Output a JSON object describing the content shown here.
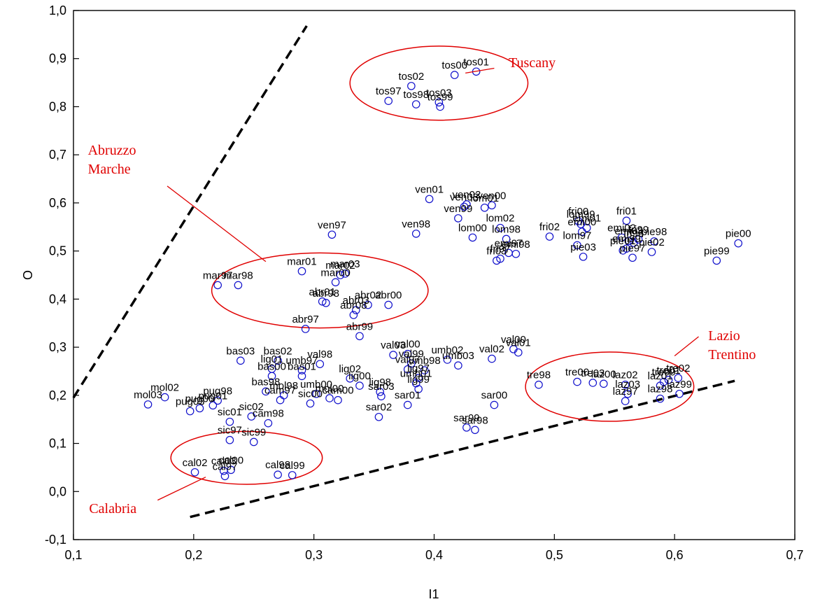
{
  "chart_data": {
    "type": "scatter",
    "title": "",
    "xlabel": "I1",
    "ylabel": "O",
    "xlim": [
      0.1,
      0.7
    ],
    "ylim": [
      -0.1,
      1.0
    ],
    "x_ticks": [
      "0,1",
      "0,2",
      "0,3",
      "0,4",
      "0,5",
      "0,6",
      "0,7"
    ],
    "y_ticks": [
      "-0,1",
      "0,0",
      "0,1",
      "0,2",
      "0,3",
      "0,4",
      "0,5",
      "0,6",
      "0,7",
      "0,8",
      "0,9",
      "1,0"
    ],
    "grid": false,
    "marker_color": "#1010cc",
    "annotation_color": "#e00000",
    "points": [
      {
        "label": "tos01",
        "x": 0.435,
        "y": 0.873
      },
      {
        "label": "tos00",
        "x": 0.417,
        "y": 0.866
      },
      {
        "label": "tos02",
        "x": 0.381,
        "y": 0.843
      },
      {
        "label": "tos97",
        "x": 0.362,
        "y": 0.812
      },
      {
        "label": "tos98",
        "x": 0.385,
        "y": 0.805
      },
      {
        "label": "tos03",
        "x": 0.404,
        "y": 0.809
      },
      {
        "label": "tos99",
        "x": 0.405,
        "y": 0.8
      },
      {
        "label": "ven01",
        "x": 0.396,
        "y": 0.608
      },
      {
        "label": "ven02",
        "x": 0.427,
        "y": 0.597
      },
      {
        "label": "ven00",
        "x": 0.448,
        "y": 0.595
      },
      {
        "label": "ven03",
        "x": 0.425,
        "y": 0.592
      },
      {
        "label": "lom01",
        "x": 0.442,
        "y": 0.59
      },
      {
        "label": "ven99",
        "x": 0.42,
        "y": 0.568
      },
      {
        "label": "ven97",
        "x": 0.315,
        "y": 0.534
      },
      {
        "label": "ven98",
        "x": 0.385,
        "y": 0.536
      },
      {
        "label": "lom00",
        "x": 0.432,
        "y": 0.528
      },
      {
        "label": "lom02",
        "x": 0.455,
        "y": 0.548
      },
      {
        "label": "lom98",
        "x": 0.46,
        "y": 0.525
      },
      {
        "label": "emi97",
        "x": 0.462,
        "y": 0.496
      },
      {
        "label": "emi98",
        "x": 0.468,
        "y": 0.494
      },
      {
        "label": "fri03",
        "x": 0.452,
        "y": 0.48
      },
      {
        "label": "fri97",
        "x": 0.455,
        "y": 0.484
      },
      {
        "label": "fri02",
        "x": 0.496,
        "y": 0.53
      },
      {
        "label": "fri00",
        "x": 0.52,
        "y": 0.562
      },
      {
        "label": "lom99",
        "x": 0.522,
        "y": 0.556
      },
      {
        "label": "emi00",
        "x": 0.523,
        "y": 0.54
      },
      {
        "label": "emi01",
        "x": 0.527,
        "y": 0.548
      },
      {
        "label": "lom97",
        "x": 0.519,
        "y": 0.512
      },
      {
        "label": "pie03",
        "x": 0.524,
        "y": 0.488
      },
      {
        "label": "fri01",
        "x": 0.56,
        "y": 0.563
      },
      {
        "label": "emi02",
        "x": 0.556,
        "y": 0.528
      },
      {
        "label": "emi03",
        "x": 0.562,
        "y": 0.521
      },
      {
        "label": "fri98",
        "x": 0.566,
        "y": 0.517
      },
      {
        "label": "fri99",
        "x": 0.57,
        "y": 0.524
      },
      {
        "label": "emi99",
        "x": 0.56,
        "y": 0.505
      },
      {
        "label": "pie01",
        "x": 0.557,
        "y": 0.501
      },
      {
        "label": "pie02",
        "x": 0.581,
        "y": 0.498
      },
      {
        "label": "pie97",
        "x": 0.565,
        "y": 0.486
      },
      {
        "label": "pie98",
        "x": 0.583,
        "y": 0.52
      },
      {
        "label": "pie00",
        "x": 0.653,
        "y": 0.516
      },
      {
        "label": "pie99",
        "x": 0.635,
        "y": 0.48
      },
      {
        "label": "mar01",
        "x": 0.29,
        "y": 0.458
      },
      {
        "label": "mar02",
        "x": 0.322,
        "y": 0.45
      },
      {
        "label": "mar03",
        "x": 0.326,
        "y": 0.453
      },
      {
        "label": "mar00",
        "x": 0.318,
        "y": 0.435
      },
      {
        "label": "mar97",
        "x": 0.22,
        "y": 0.429
      },
      {
        "label": "mar98",
        "x": 0.237,
        "y": 0.429
      },
      {
        "label": "abr01",
        "x": 0.307,
        "y": 0.395
      },
      {
        "label": "abr98",
        "x": 0.31,
        "y": 0.392
      },
      {
        "label": "abr02",
        "x": 0.345,
        "y": 0.388
      },
      {
        "label": "abr00",
        "x": 0.362,
        "y": 0.388
      },
      {
        "label": "abr03",
        "x": 0.335,
        "y": 0.377
      },
      {
        "label": "abr08",
        "x": 0.333,
        "y": 0.367
      },
      {
        "label": "abr97",
        "x": 0.293,
        "y": 0.338
      },
      {
        "label": "abr99",
        "x": 0.338,
        "y": 0.323
      },
      {
        "label": "bas03",
        "x": 0.239,
        "y": 0.272
      },
      {
        "label": "bas02",
        "x": 0.27,
        "y": 0.272
      },
      {
        "label": "val98",
        "x": 0.305,
        "y": 0.265
      },
      {
        "label": "lig01",
        "x": 0.265,
        "y": 0.255
      },
      {
        "label": "umb97",
        "x": 0.29,
        "y": 0.252
      },
      {
        "label": "bas01",
        "x": 0.29,
        "y": 0.24
      },
      {
        "label": "bas00",
        "x": 0.265,
        "y": 0.24
      },
      {
        "label": "lig02",
        "x": 0.33,
        "y": 0.235
      },
      {
        "label": "bas98",
        "x": 0.26,
        "y": 0.208
      },
      {
        "label": "mol98",
        "x": 0.275,
        "y": 0.2
      },
      {
        "label": "lig00",
        "x": 0.338,
        "y": 0.22
      },
      {
        "label": "lig98",
        "x": 0.355,
        "y": 0.207
      },
      {
        "label": "sic00",
        "x": 0.297,
        "y": 0.183
      },
      {
        "label": "cam97",
        "x": 0.272,
        "y": 0.19
      },
      {
        "label": "cam00",
        "x": 0.32,
        "y": 0.19
      },
      {
        "label": "mol00",
        "x": 0.313,
        "y": 0.194
      },
      {
        "label": "umb00",
        "x": 0.302,
        "y": 0.203
      },
      {
        "label": "sic02",
        "x": 0.248,
        "y": 0.156
      },
      {
        "label": "sic01",
        "x": 0.23,
        "y": 0.145
      },
      {
        "label": "sic99",
        "x": 0.25,
        "y": 0.103
      },
      {
        "label": "sic97",
        "x": 0.23,
        "y": 0.107
      },
      {
        "label": "cam98",
        "x": 0.262,
        "y": 0.142
      },
      {
        "label": "mol03",
        "x": 0.162,
        "y": 0.181
      },
      {
        "label": "mol02",
        "x": 0.176,
        "y": 0.196
      },
      {
        "label": "pug03",
        "x": 0.197,
        "y": 0.167
      },
      {
        "label": "pug98",
        "x": 0.22,
        "y": 0.189
      },
      {
        "label": "pug00",
        "x": 0.205,
        "y": 0.173
      },
      {
        "label": "pug01",
        "x": 0.216,
        "y": 0.179
      },
      {
        "label": "cal02",
        "x": 0.201,
        "y": 0.04
      },
      {
        "label": "cal03",
        "x": 0.225,
        "y": 0.043
      },
      {
        "label": "cal00",
        "x": 0.231,
        "y": 0.045
      },
      {
        "label": "cal97",
        "x": 0.226,
        "y": 0.032
      },
      {
        "label": "cal98",
        "x": 0.27,
        "y": 0.035
      },
      {
        "label": "cal99",
        "x": 0.282,
        "y": 0.034
      },
      {
        "label": "val03",
        "x": 0.366,
        "y": 0.284
      },
      {
        "label": "val00",
        "x": 0.378,
        "y": 0.286
      },
      {
        "label": "umb02",
        "x": 0.411,
        "y": 0.274
      },
      {
        "label": "umb03",
        "x": 0.42,
        "y": 0.262
      },
      {
        "label": "val02",
        "x": 0.448,
        "y": 0.276
      },
      {
        "label": "val00b",
        "x": 0.466,
        "y": 0.296
      },
      {
        "label": "val01",
        "x": 0.47,
        "y": 0.289
      },
      {
        "label": "val99",
        "x": 0.381,
        "y": 0.266
      },
      {
        "label": "val97",
        "x": 0.378,
        "y": 0.254
      },
      {
        "label": "umb98",
        "x": 0.392,
        "y": 0.252
      },
      {
        "label": "lig97",
        "x": 0.387,
        "y": 0.236
      },
      {
        "label": "umb01",
        "x": 0.385,
        "y": 0.225
      },
      {
        "label": "lig99",
        "x": 0.387,
        "y": 0.213
      },
      {
        "label": "sar03",
        "x": 0.356,
        "y": 0.198
      },
      {
        "label": "sar01",
        "x": 0.378,
        "y": 0.18
      },
      {
        "label": "sar02",
        "x": 0.354,
        "y": 0.155
      },
      {
        "label": "sar00",
        "x": 0.45,
        "y": 0.18
      },
      {
        "label": "sar99",
        "x": 0.427,
        "y": 0.133
      },
      {
        "label": "sar98",
        "x": 0.434,
        "y": 0.128
      },
      {
        "label": "tre98",
        "x": 0.487,
        "y": 0.222
      },
      {
        "label": "tre00",
        "x": 0.519,
        "y": 0.228
      },
      {
        "label": "tre03",
        "x": 0.532,
        "y": 0.226
      },
      {
        "label": "laz00",
        "x": 0.541,
        "y": 0.224
      },
      {
        "label": "laz02",
        "x": 0.559,
        "y": 0.222
      },
      {
        "label": "laz03",
        "x": 0.561,
        "y": 0.203
      },
      {
        "label": "laz97",
        "x": 0.559,
        "y": 0.188
      },
      {
        "label": "laz98",
        "x": 0.588,
        "y": 0.193
      },
      {
        "label": "laz99",
        "x": 0.604,
        "y": 0.203
      },
      {
        "label": "laz01",
        "x": 0.588,
        "y": 0.22
      },
      {
        "label": "tre99",
        "x": 0.591,
        "y": 0.228
      },
      {
        "label": "tre01",
        "x": 0.595,
        "y": 0.232
      },
      {
        "label": "tre02",
        "x": 0.603,
        "y": 0.236
      }
    ],
    "annotations": [
      {
        "id": "tuscany",
        "text": "Tuscany",
        "cx": 0.404,
        "cy": 0.849,
        "rx": 0.074,
        "ry": 0.077,
        "tx": 0.462,
        "ty": 0.882,
        "ax": 0.426,
        "ay": 0.87,
        "lx": 0.45,
        "ly": 0.88
      },
      {
        "id": "abruzzo-marche",
        "text": "Abruzzo\nMarche",
        "cx": 0.305,
        "cy": 0.418,
        "rx": 0.09,
        "ry": 0.078,
        "tx": 0.112,
        "ty": 0.7,
        "ax": 0.178,
        "ay": 0.635,
        "lx": 0.26,
        "ly": 0.478
      },
      {
        "id": "lazio-trentino",
        "text": "Lazio\nTrentino",
        "cx": 0.546,
        "cy": 0.218,
        "rx": 0.07,
        "ry": 0.072,
        "tx": 0.628,
        "ty": 0.315,
        "ax": 0.62,
        "ay": 0.322,
        "lx": 0.6,
        "ly": 0.282
      },
      {
        "id": "calabria",
        "text": "Calabria",
        "cx": 0.244,
        "cy": 0.07,
        "rx": 0.063,
        "ry": 0.055,
        "tx": 0.113,
        "ty": -0.045,
        "ax": 0.17,
        "ay": -0.018,
        "lx": 0.21,
        "ly": 0.03
      }
    ],
    "boundary_lines": [
      {
        "from": [
          0.1,
          0.195
        ],
        "to": [
          0.294,
          0.968
        ]
      },
      {
        "from": [
          0.197,
          -0.053
        ],
        "to": [
          0.65,
          0.23
        ]
      }
    ]
  }
}
